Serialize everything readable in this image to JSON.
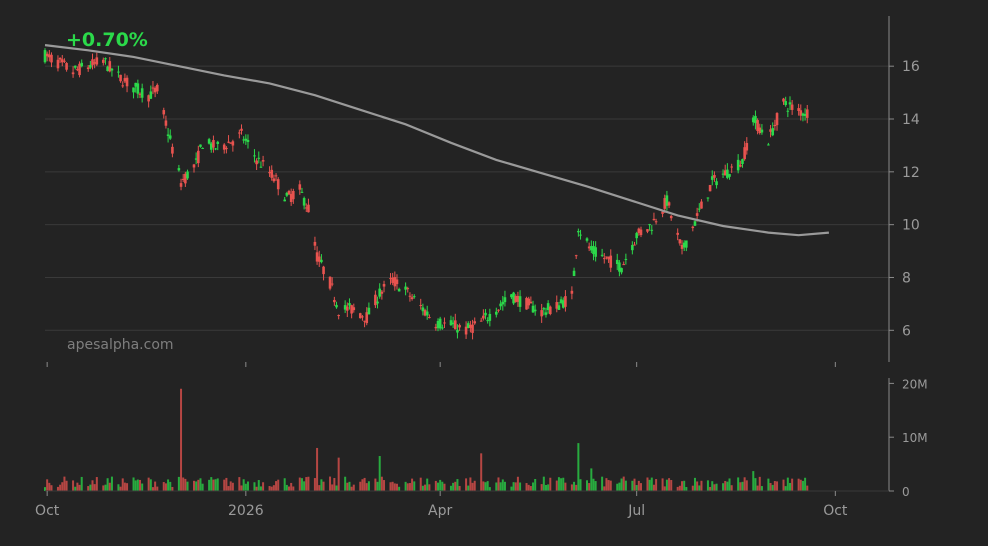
{
  "header": {
    "change_text": "+0.70%"
  },
  "watermark": "apesalpha.com",
  "colors": {
    "up": "#2bd94a",
    "down": "#e8534f",
    "ma": "#9a9a9a",
    "grid": "#3a3a3a",
    "axis": "#8a8a8a",
    "background": "#232323"
  },
  "chart_data": [
    {
      "type": "candlestick",
      "ylim": [
        4.8,
        17.9
      ],
      "y_ticks": [
        6,
        8,
        10,
        12,
        14,
        16
      ],
      "y_tick_labels": [
        "6",
        "8",
        "10",
        "12",
        "14",
        "16"
      ],
      "x_ticks": [
        {
          "date": "2025-10-01",
          "label": "Oct"
        },
        {
          "date": "2026-01-01",
          "label": "2026"
        },
        {
          "date": "2026-04-01",
          "label": "Apr"
        },
        {
          "date": "2026-07-01",
          "label": "Jul"
        },
        {
          "date": "2026-10-01",
          "label": "Oct"
        }
      ],
      "xlim": [
        "2025-09-30",
        "2026-10-24"
      ],
      "grid": true,
      "price_anchors": [
        [
          "2025-09-30",
          16.4
        ],
        [
          "2025-10-07",
          16.1
        ],
        [
          "2025-10-13",
          15.8
        ],
        [
          "2025-10-20",
          16.0
        ],
        [
          "2025-10-27",
          16.2
        ],
        [
          "2025-11-03",
          15.6
        ],
        [
          "2025-11-10",
          15.2
        ],
        [
          "2025-11-17",
          14.9
        ],
        [
          "2025-11-21",
          15.1
        ],
        [
          "2025-12-02",
          11.6
        ],
        [
          "2025-12-09",
          12.3
        ],
        [
          "2025-12-12",
          13.1
        ],
        [
          "2025-12-19",
          12.9
        ],
        [
          "2025-12-26",
          13.2
        ],
        [
          "2025-12-30",
          13.4
        ],
        [
          "2026-01-06",
          12.5
        ],
        [
          "2026-01-14",
          11.8
        ],
        [
          "2026-01-20",
          11.0
        ],
        [
          "2026-01-26",
          11.3
        ],
        [
          "2026-01-30",
          10.6
        ],
        [
          "2026-02-03",
          8.8
        ],
        [
          "2026-02-09",
          7.8
        ],
        [
          "2026-02-13",
          6.8
        ],
        [
          "2026-02-20",
          6.8
        ],
        [
          "2026-02-26",
          6.5
        ],
        [
          "2026-03-04",
          7.4
        ],
        [
          "2026-03-10",
          7.9
        ],
        [
          "2026-03-16",
          7.5
        ],
        [
          "2026-03-23",
          6.9
        ],
        [
          "2026-03-30",
          6.3
        ],
        [
          "2026-04-06",
          6.2
        ],
        [
          "2026-04-13",
          6.0
        ],
        [
          "2026-04-20",
          6.3
        ],
        [
          "2026-04-27",
          6.8
        ],
        [
          "2026-05-04",
          7.3
        ],
        [
          "2026-05-11",
          7.0
        ],
        [
          "2026-05-18",
          6.7
        ],
        [
          "2026-05-25",
          6.9
        ],
        [
          "2026-06-01",
          7.3
        ],
        [
          "2026-06-04",
          9.9
        ],
        [
          "2026-06-10",
          9.0
        ],
        [
          "2026-06-17",
          8.7
        ],
        [
          "2026-06-24",
          8.4
        ],
        [
          "2026-07-01",
          9.6
        ],
        [
          "2026-07-08",
          10.0
        ],
        [
          "2026-07-15",
          10.9
        ],
        [
          "2026-07-22",
          9.0
        ],
        [
          "2026-07-29",
          10.3
        ],
        [
          "2026-08-05",
          11.6
        ],
        [
          "2026-08-12",
          12.0
        ],
        [
          "2026-08-19",
          12.4
        ],
        [
          "2026-08-24",
          14.0
        ],
        [
          "2026-08-31",
          13.2
        ],
        [
          "2026-09-07",
          14.6
        ],
        [
          "2026-09-14",
          14.3
        ],
        [
          "2026-09-21",
          14.2
        ]
      ],
      "moving_average": [
        [
          "2025-09-30",
          16.8
        ],
        [
          "2025-10-20",
          16.6
        ],
        [
          "2025-11-10",
          16.35
        ],
        [
          "2025-12-01",
          16.0
        ],
        [
          "2025-12-22",
          15.65
        ],
        [
          "2026-01-12",
          15.35
        ],
        [
          "2026-02-02",
          14.9
        ],
        [
          "2026-02-23",
          14.35
        ],
        [
          "2026-03-16",
          13.8
        ],
        [
          "2026-04-06",
          13.1
        ],
        [
          "2026-04-27",
          12.45
        ],
        [
          "2026-05-18",
          11.95
        ],
        [
          "2026-06-08",
          11.45
        ],
        [
          "2026-06-29",
          10.9
        ],
        [
          "2026-07-20",
          10.35
        ],
        [
          "2026-08-10",
          9.95
        ],
        [
          "2026-08-31",
          9.7
        ],
        [
          "2026-09-14",
          9.6
        ],
        [
          "2026-09-28",
          9.7
        ]
      ]
    },
    {
      "type": "bar",
      "name": "volume",
      "ylim": [
        0,
        21000000
      ],
      "y_ticks": [
        0,
        10000000,
        20000000
      ],
      "y_tick_labels": [
        "0",
        "10M",
        "20M"
      ],
      "spikes": [
        [
          "2025-12-02",
          19000000
        ],
        [
          "2026-02-03",
          8000000
        ],
        [
          "2026-02-13",
          6200000
        ],
        [
          "2026-03-04",
          6500000
        ],
        [
          "2026-04-20",
          7000000
        ],
        [
          "2026-06-04",
          8900000
        ],
        [
          "2026-06-10",
          4200000
        ],
        [
          "2026-08-24",
          3700000
        ]
      ],
      "baseline_volume": 1800000
    }
  ]
}
